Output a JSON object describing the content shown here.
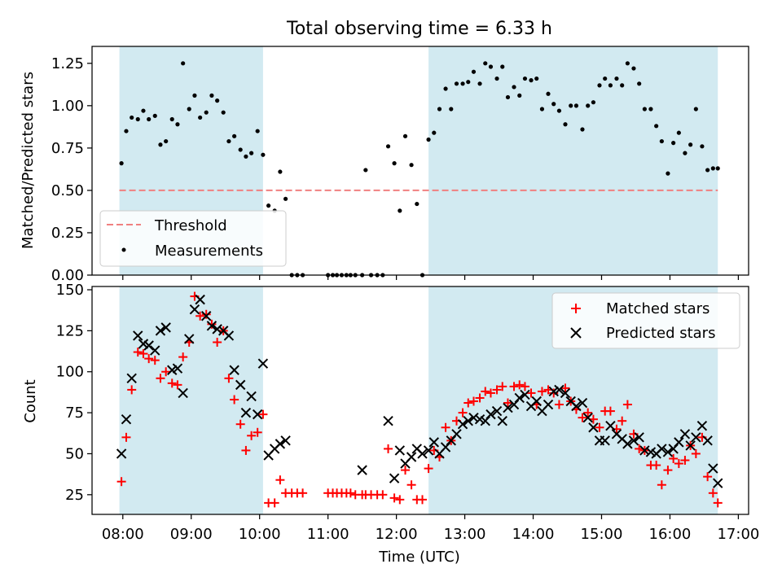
{
  "figure": {
    "title": "Total observing time = 6.33 h",
    "xlabel": "Time (UTC)",
    "x_ticks": [
      "08:00",
      "09:00",
      "10:00",
      "11:00",
      "12:00",
      "13:00",
      "14:00",
      "15:00",
      "16:00",
      "17:00"
    ],
    "shaded_intervals": [
      [
        7.95,
        10.05
      ],
      [
        12.47,
        16.7
      ]
    ],
    "shade_color": "#add8e6"
  },
  "chart_data": [
    {
      "type": "scatter",
      "panel": "top",
      "title": "Total observing time = 6.33 h",
      "xlabel": "",
      "ylabel": "Matched/Predicted stars",
      "xlim": [
        7.55,
        17.15
      ],
      "ylim": [
        0,
        1.35
      ],
      "y_ticks": [
        "0.00",
        "0.25",
        "0.50",
        "0.75",
        "1.00",
        "1.25"
      ],
      "y_tick_values": [
        0,
        0.25,
        0.5,
        0.75,
        1.0,
        1.25
      ],
      "threshold": {
        "name": "Threshold",
        "value": 0.5,
        "color": "#f08080"
      },
      "legend": {
        "placement": "lower-left",
        "entries": [
          "Threshold",
          "Measurements"
        ]
      },
      "series": [
        {
          "name": "Measurements",
          "color": "#000000",
          "x": [
            7.98,
            8.05,
            8.13,
            8.22,
            8.3,
            8.38,
            8.47,
            8.55,
            8.63,
            8.72,
            8.8,
            8.88,
            8.97,
            9.05,
            9.13,
            9.22,
            9.3,
            9.38,
            9.47,
            9.55,
            9.63,
            9.72,
            9.8,
            9.88,
            9.97,
            10.05,
            10.13,
            10.22,
            10.3,
            10.38,
            10.47,
            10.55,
            10.63,
            11.0,
            11.07,
            11.13,
            11.2,
            11.27,
            11.33,
            11.4,
            11.5,
            11.55,
            11.63,
            11.72,
            11.8,
            11.88,
            11.97,
            12.05,
            12.13,
            12.22,
            12.3,
            12.38,
            12.47,
            12.55,
            12.63,
            12.72,
            12.8,
            12.88,
            12.97,
            13.05,
            13.13,
            13.22,
            13.3,
            13.38,
            13.47,
            13.55,
            13.63,
            13.72,
            13.8,
            13.88,
            13.97,
            14.05,
            14.13,
            14.22,
            14.3,
            14.38,
            14.47,
            14.55,
            14.63,
            14.72,
            14.8,
            14.88,
            14.97,
            15.05,
            15.13,
            15.22,
            15.3,
            15.38,
            15.47,
            15.55,
            15.63,
            15.72,
            15.8,
            15.88,
            15.97,
            16.05,
            16.13,
            16.22,
            16.3,
            16.38,
            16.47,
            16.55,
            16.63,
            16.7
          ],
          "y": [
            0.66,
            0.85,
            0.93,
            0.92,
            0.97,
            0.92,
            0.94,
            0.77,
            0.79,
            0.92,
            0.89,
            1.25,
            0.98,
            1.06,
            0.93,
            0.96,
            1.06,
            1.03,
            0.96,
            0.79,
            0.82,
            0.74,
            0.7,
            0.72,
            0.85,
            0.71,
            0.41,
            0.38,
            0.61,
            0.45,
            0.0,
            0.0,
            0.0,
            0.0,
            0.0,
            0.0,
            0.0,
            0.0,
            0.0,
            0.0,
            0.0,
            0.62,
            0.0,
            0.0,
            0.0,
            0.76,
            0.66,
            0.38,
            0.82,
            0.65,
            0.42,
            0.0,
            0.8,
            0.84,
            0.98,
            1.1,
            0.98,
            1.13,
            1.13,
            1.14,
            1.2,
            1.13,
            1.25,
            1.23,
            1.16,
            1.23,
            1.05,
            1.11,
            1.06,
            1.16,
            1.15,
            1.16,
            0.98,
            1.07,
            1.01,
            0.97,
            0.89,
            1.0,
            1.0,
            0.86,
            1.0,
            1.02,
            1.12,
            1.16,
            1.12,
            1.16,
            1.12,
            1.25,
            1.22,
            1.13,
            0.98,
            0.98,
            0.88,
            0.79,
            0.6,
            0.78,
            0.84,
            0.72,
            0.77,
            0.98,
            0.76,
            0.62,
            0.63,
            0.63
          ]
        }
      ]
    },
    {
      "type": "scatter",
      "panel": "bottom",
      "xlabel": "Time (UTC)",
      "ylabel": "Count",
      "xlim": [
        7.55,
        17.15
      ],
      "ylim": [
        13,
        152
      ],
      "y_ticks": [
        "25",
        "50",
        "75",
        "100",
        "125",
        "150"
      ],
      "y_tick_values": [
        25,
        50,
        75,
        100,
        125,
        150
      ],
      "legend": {
        "placement": "top-right",
        "entries": [
          "Matched stars",
          "Predicted stars"
        ]
      },
      "series": [
        {
          "name": "Matched stars",
          "marker": "plus",
          "color": "#ff0000",
          "x": [
            7.98,
            8.05,
            8.13,
            8.22,
            8.3,
            8.38,
            8.47,
            8.55,
            8.63,
            8.72,
            8.8,
            8.88,
            8.97,
            9.05,
            9.13,
            9.22,
            9.3,
            9.38,
            9.47,
            9.55,
            9.63,
            9.72,
            9.8,
            9.88,
            9.97,
            10.05,
            10.13,
            10.22,
            10.3,
            10.38,
            10.47,
            10.55,
            10.63,
            11.0,
            11.07,
            11.13,
            11.2,
            11.27,
            11.33,
            11.4,
            11.5,
            11.55,
            11.63,
            11.72,
            11.8,
            11.88,
            11.97,
            12.05,
            12.13,
            12.22,
            12.3,
            12.38,
            12.47,
            12.55,
            12.63,
            12.72,
            12.8,
            12.88,
            12.97,
            13.05,
            13.13,
            13.22,
            13.3,
            13.38,
            13.47,
            13.55,
            13.63,
            13.72,
            13.8,
            13.88,
            13.97,
            14.05,
            14.13,
            14.22,
            14.3,
            14.38,
            14.47,
            14.55,
            14.63,
            14.72,
            14.8,
            14.88,
            14.97,
            15.05,
            15.13,
            15.22,
            15.3,
            15.38,
            15.47,
            15.55,
            15.63,
            15.72,
            15.8,
            15.88,
            15.97,
            16.05,
            16.13,
            16.22,
            16.3,
            16.38,
            16.47,
            16.55,
            16.63,
            16.7
          ],
          "y": [
            33,
            60,
            89,
            112,
            111,
            108,
            107,
            96,
            100,
            93,
            92,
            109,
            118,
            146,
            134,
            135,
            129,
            118,
            125,
            96,
            83,
            68,
            52,
            61,
            63,
            74,
            20,
            20,
            34,
            26,
            26,
            26,
            26,
            26,
            26,
            26,
            26,
            26,
            26,
            25,
            25,
            25,
            25,
            25,
            25,
            53,
            23,
            22,
            40,
            31,
            22,
            22,
            41,
            52,
            48,
            66,
            58,
            70,
            75,
            81,
            82,
            84,
            88,
            87,
            89,
            91,
            81,
            91,
            92,
            91,
            87,
            80,
            88,
            89,
            87,
            80,
            90,
            82,
            77,
            72,
            75,
            71,
            66,
            76,
            76,
            65,
            70,
            80,
            62,
            53,
            52,
            43,
            43,
            31,
            40,
            47,
            44,
            46,
            55,
            50,
            60,
            36,
            26,
            20
          ]
        },
        {
          "name": "Predicted stars",
          "marker": "x",
          "color": "#000000",
          "x": [
            7.98,
            8.05,
            8.13,
            8.22,
            8.3,
            8.38,
            8.47,
            8.55,
            8.63,
            8.72,
            8.8,
            8.88,
            8.97,
            9.05,
            9.13,
            9.22,
            9.3,
            9.38,
            9.47,
            9.55,
            9.63,
            9.72,
            9.8,
            9.88,
            9.97,
            10.05,
            10.13,
            10.22,
            10.3,
            10.38,
            11.5,
            11.88,
            11.97,
            12.05,
            12.13,
            12.22,
            12.3,
            12.38,
            12.47,
            12.55,
            12.63,
            12.72,
            12.8,
            12.88,
            12.97,
            13.05,
            13.13,
            13.22,
            13.3,
            13.38,
            13.47,
            13.55,
            13.63,
            13.72,
            13.8,
            13.88,
            13.97,
            14.05,
            14.13,
            14.22,
            14.3,
            14.38,
            14.47,
            14.55,
            14.63,
            14.72,
            14.8,
            14.88,
            14.97,
            15.05,
            15.13,
            15.22,
            15.3,
            15.38,
            15.47,
            15.55,
            15.63,
            15.72,
            15.8,
            15.88,
            15.97,
            16.05,
            16.13,
            16.22,
            16.3,
            16.38,
            16.47,
            16.55,
            16.63,
            16.7
          ],
          "y": [
            50,
            71,
            96,
            122,
            117,
            116,
            113,
            125,
            127,
            101,
            102,
            87,
            120,
            138,
            144,
            134,
            128,
            126,
            125,
            122,
            101,
            92,
            75,
            85,
            74,
            105,
            49,
            53,
            56,
            58,
            40,
            70,
            35,
            52,
            44,
            48,
            53,
            50,
            52,
            57,
            50,
            54,
            58,
            62,
            68,
            70,
            72,
            71,
            70,
            74,
            76,
            70,
            78,
            80,
            84,
            86,
            79,
            82,
            76,
            80,
            88,
            89,
            87,
            82,
            79,
            81,
            72,
            66,
            58,
            58,
            67,
            62,
            59,
            56,
            58,
            60,
            52,
            51,
            50,
            53,
            51,
            53,
            57,
            62,
            55,
            60,
            67,
            58,
            41,
            32
          ]
        }
      ]
    }
  ]
}
